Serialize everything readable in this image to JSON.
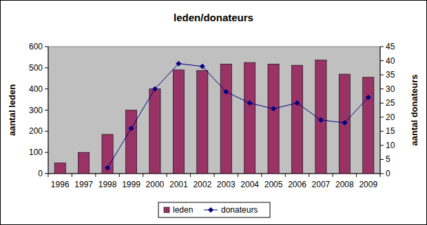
{
  "chart_data": {
    "type": "bar",
    "title": "leden/donateurs",
    "y_label": "aantal leden",
    "y2_label": "aantal donateurs",
    "categories": [
      "1996",
      "1997",
      "1998",
      "1999",
      "2000",
      "2001",
      "2002",
      "2003",
      "2004",
      "2005",
      "2006",
      "2007",
      "2008",
      "2009"
    ],
    "series": [
      {
        "name": "leden",
        "type": "bar",
        "color": "#993366",
        "values": [
          50,
          100,
          185,
          300,
          400,
          490,
          487,
          518,
          525,
          518,
          512,
          537,
          470,
          455
        ]
      },
      {
        "name": "donateurs",
        "type": "line",
        "color": "#000080",
        "marker": "diamond",
        "axis": "y2",
        "values": [
          null,
          null,
          2,
          16,
          30,
          39,
          38,
          29,
          25,
          23,
          25,
          19,
          18,
          27
        ]
      }
    ],
    "ylim": [
      0,
      600
    ],
    "yticks": [
      0,
      100,
      200,
      300,
      400,
      500,
      600
    ],
    "y2lim": [
      0,
      45
    ],
    "y2ticks": [
      0,
      5,
      10,
      15,
      20,
      25,
      30,
      35,
      40,
      45
    ],
    "grid": false,
    "legend": "bottom"
  }
}
